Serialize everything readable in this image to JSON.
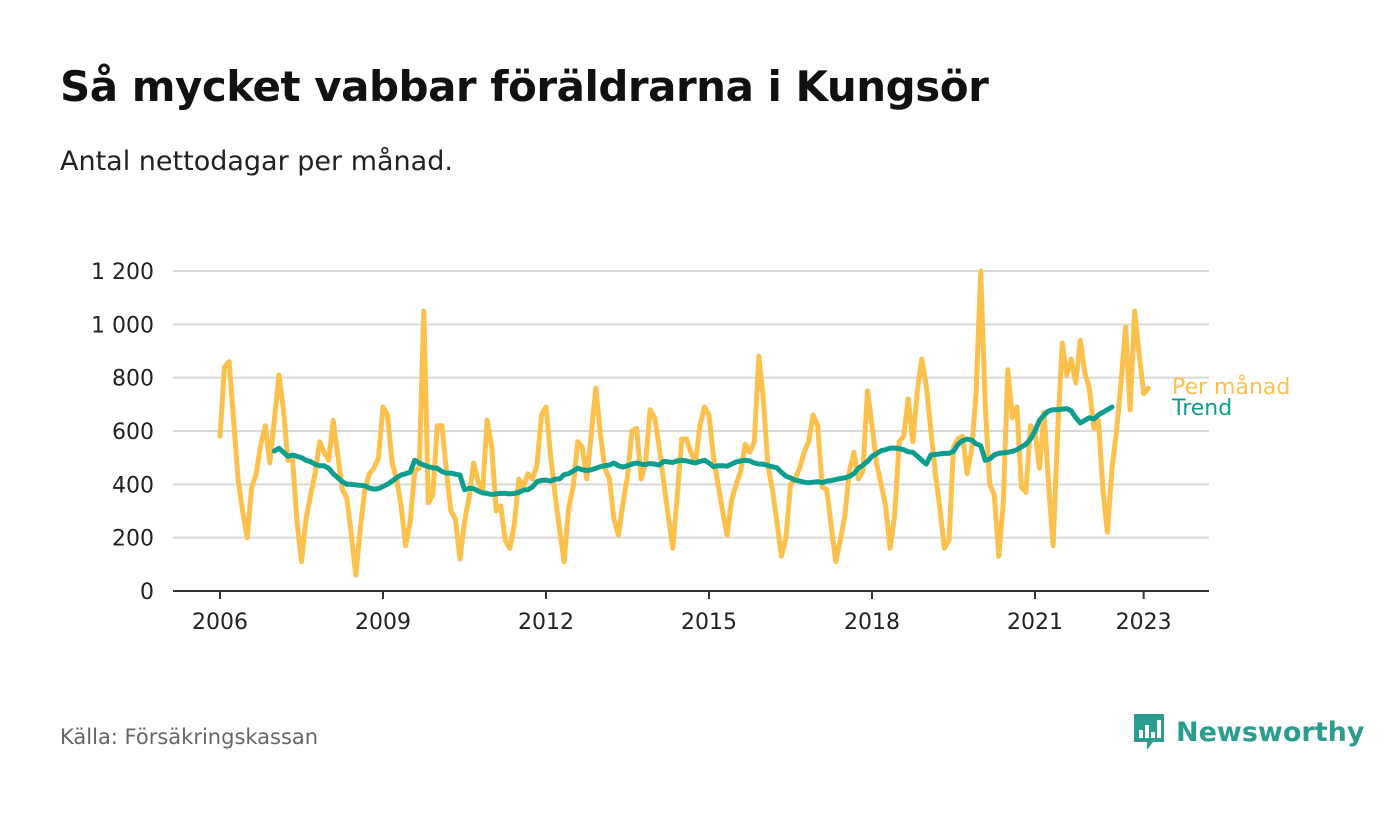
{
  "header": {
    "title": "Så mycket vabbar föräldrarna i Kungsör",
    "subtitle": "Antal nettodagar per månad."
  },
  "footer": {
    "source": "Källa: Försäkringskassan",
    "brand": "Newsworthy"
  },
  "icons": {
    "brand_logo": "bar-chart-speech-bubble-icon"
  },
  "colors": {
    "monthly": "#fbc14c",
    "trend": "#0e9e8e",
    "grid": "#d9d9d9",
    "axis": "#333333",
    "brand": "#2a9d8f"
  },
  "chart_data": {
    "type": "line",
    "x_unit": "months since Jan 2006",
    "xlim": [
      -6,
      216
    ],
    "ylim": [
      0,
      1200
    ],
    "y_ticks": [
      0,
      200,
      400,
      600,
      800,
      1000,
      1200
    ],
    "y_tick_labels": [
      "0",
      "200",
      "400",
      "600",
      "800",
      "1 000",
      "1 200"
    ],
    "x_ticks": [
      0,
      36,
      72,
      108,
      144,
      180,
      204
    ],
    "x_tick_labels": [
      "2006",
      "2009",
      "2012",
      "2015",
      "2018",
      "2021",
      "2023"
    ],
    "grid": true,
    "legend": "end-of-line labels",
    "series": [
      {
        "name": "Per månad",
        "color": "#fbc14c",
        "start_month": 0,
        "values": [
          580,
          840,
          860,
          640,
          420,
          300,
          200,
          390,
          440,
          550,
          620,
          480,
          640,
          810,
          680,
          490,
          500,
          260,
          110,
          270,
          360,
          440,
          560,
          520,
          490,
          640,
          510,
          380,
          350,
          210,
          60,
          240,
          380,
          440,
          460,
          500,
          690,
          660,
          480,
          420,
          320,
          170,
          260,
          450,
          460,
          1050,
          330,
          360,
          620,
          620,
          450,
          300,
          270,
          120,
          260,
          350,
          480,
          410,
          370,
          640,
          540,
          300,
          320,
          190,
          160,
          250,
          420,
          390,
          440,
          420,
          470,
          660,
          690,
          510,
          360,
          230,
          110,
          310,
          390,
          560,
          540,
          420,
          590,
          760,
          590,
          460,
          420,
          270,
          210,
          330,
          430,
          600,
          610,
          420,
          480,
          680,
          650,
          540,
          410,
          280,
          160,
          360,
          570,
          570,
          520,
          480,
          620,
          690,
          660,
          500,
          400,
          300,
          210,
          340,
          400,
          450,
          550,
          520,
          560,
          880,
          720,
          470,
          380,
          260,
          130,
          200,
          400,
          420,
          460,
          520,
          560,
          660,
          620,
          390,
          380,
          240,
          110,
          190,
          280,
          450,
          520,
          420,
          450,
          750,
          620,
          480,
          400,
          320,
          160,
          280,
          560,
          580,
          720,
          560,
          750,
          870,
          770,
          600,
          440,
          310,
          160,
          190,
          540,
          570,
          580,
          440,
          530,
          740,
          1200,
          700,
          400,
          360,
          130,
          330,
          830,
          650,
          690,
          390,
          370,
          620,
          600,
          460,
          670,
          400,
          170,
          590,
          930,
          810,
          870,
          780,
          940,
          820,
          760,
          610,
          640,
          380,
          220,
          460,
          600,
          780,
          990,
          680,
          1050,
          890,
          740,
          760
        ]
      },
      {
        "name": "Trend",
        "color": "#0e9e8e",
        "start_month": 12,
        "values": [
          525,
          535,
          520,
          505,
          510,
          505,
          500,
          490,
          485,
          475,
          470,
          470,
          460,
          440,
          425,
          410,
          400,
          400,
          398,
          396,
          394,
          386,
          382,
          384,
          392,
          400,
          412,
          425,
          435,
          440,
          445,
          490,
          480,
          472,
          466,
          462,
          460,
          448,
          442,
          442,
          438,
          435,
          380,
          385,
          384,
          375,
          368,
          366,
          362,
          364,
          366,
          366,
          364,
          366,
          370,
          378,
          380,
          390,
          410,
          415,
          416,
          412,
          420,
          420,
          436,
          440,
          450,
          460,
          455,
          452,
          455,
          460,
          466,
          470,
          472,
          480,
          470,
          465,
          470,
          476,
          480,
          476,
          474,
          478,
          476,
          472,
          486,
          484,
          482,
          488,
          490,
          488,
          484,
          480,
          486,
          490,
          480,
          466,
          470,
          470,
          468,
          476,
          484,
          488,
          490,
          488,
          480,
          476,
          476,
          470,
          466,
          462,
          445,
          430,
          424,
          416,
          412,
          408,
          406,
          408,
          410,
          406,
          412,
          414,
          418,
          422,
          424,
          430,
          440,
          460,
          472,
          486,
          505,
          515,
          526,
          530,
          536,
          536,
          534,
          530,
          522,
          520,
          506,
          490,
          476,
          510,
          512,
          514,
          516,
          516,
          524,
          550,
          564,
          570,
          566,
          552,
          545,
          490,
          495,
          510,
          516,
          518,
          520,
          524,
          530,
          540,
          550,
          570,
          600,
          640,
          660,
          675,
          680,
          680,
          682,
          684,
          676,
          650,
          630,
          640,
          650,
          645,
          660,
          670,
          680,
          690
        ]
      }
    ],
    "end_labels": [
      {
        "text": "Per månad",
        "color": "#fbc14c"
      },
      {
        "text": "Trend",
        "color": "#0e9e8e"
      }
    ]
  }
}
